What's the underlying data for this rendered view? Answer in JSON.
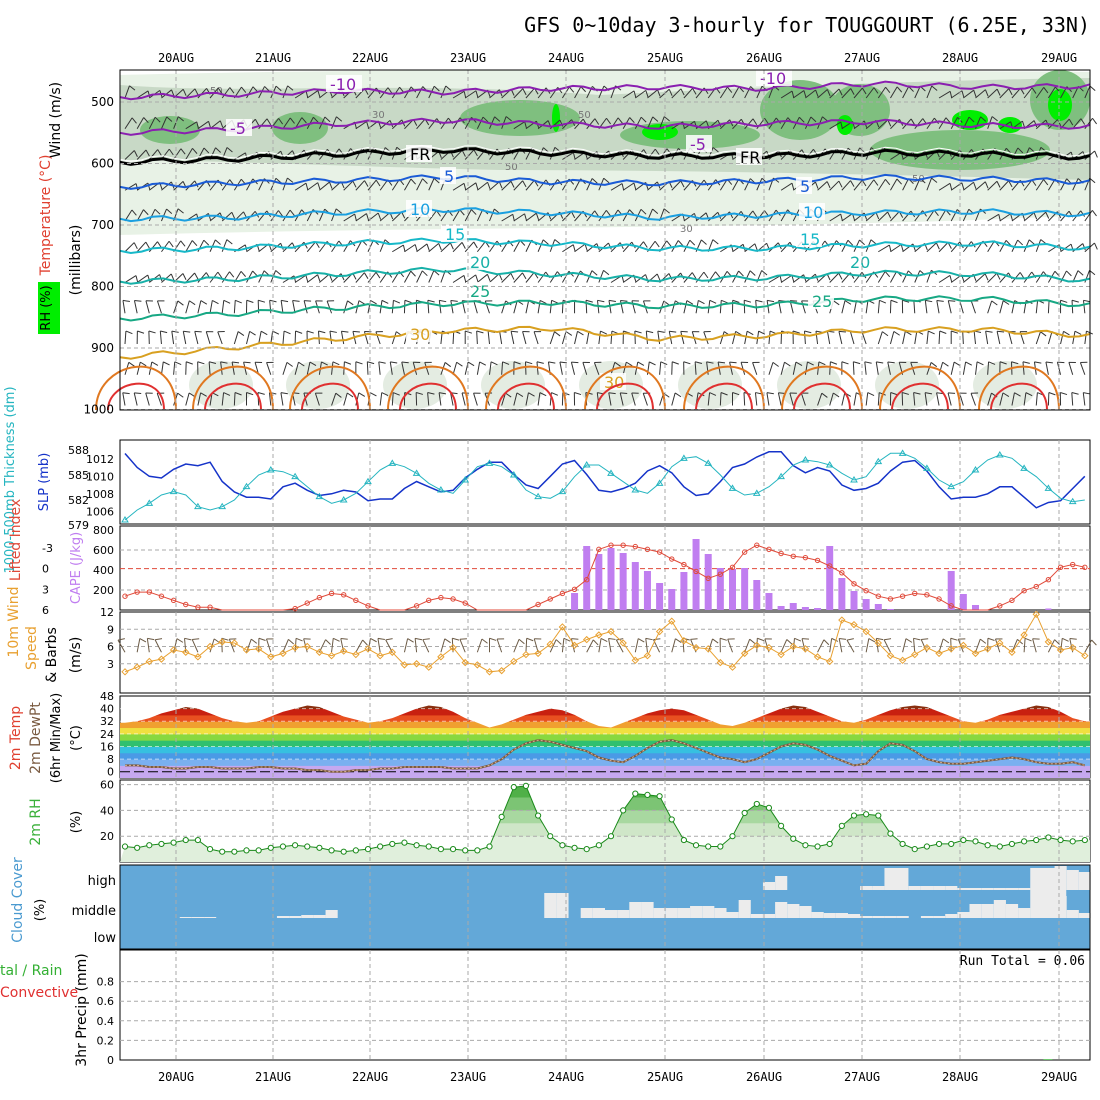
{
  "page": {
    "title": "GFS 0~10day 3-hourly for TOUGGOURT (6.25E, 33N)",
    "dates": [
      "20AUG",
      "21AUG",
      "22AUG",
      "23AUG",
      "24AUG",
      "25AUG",
      "26AUG",
      "27AUG",
      "28AUG",
      "29AUG"
    ],
    "run_total": "Run Total = 0.06"
  },
  "colors": {
    "rh_light": "#e8f2e6",
    "rh_mid": "#c4d6c2",
    "rh_dark": "#7fbf7f",
    "rh_green": "#33cc33",
    "rh_bright": "#00ee00",
    "slp": "#1533c9",
    "thick": "#25b5c0",
    "lifted": "#e04a3a",
    "cape": "#c07ef0",
    "wind_speed": "#e8a030",
    "barb": "#6b5a45",
    "rh2m": "#3ab03a",
    "cloud_bg": "#63a8d8",
    "cloud_fill": "#ececec",
    "precip_total": "#33b033",
    "precip_conv": "#e03030"
  },
  "chart_data": [
    {
      "type": "contour",
      "name": "upper-air-cross-section",
      "ylabel_wind": "Wind (m/s)",
      "ylabel_temp": "Temperature (°C)",
      "ylabel_rh": "RH (%)",
      "ylabel_mb": "(millibars)",
      "yticks": [
        500,
        600,
        700,
        800,
        900,
        1000
      ],
      "ylim": [
        450,
        1000
      ],
      "rh_labels": [
        "50",
        "30",
        "50",
        "50",
        "30",
        "50"
      ],
      "isotherm_levels": [
        -10,
        -5,
        0,
        5,
        10,
        15,
        20,
        25,
        30
      ],
      "isotherm_labels": [
        "-10",
        "-5",
        "FR",
        "5",
        "10",
        "15",
        "20",
        "25",
        "30"
      ],
      "isotherms_mb": [
        {
          "t": -10,
          "mb": [
            492,
            488,
            482,
            484,
            478,
            476,
            478,
            470,
            476,
            474
          ]
        },
        {
          "t": -5,
          "mb": [
            550,
            545,
            536,
            530,
            536,
            540,
            535,
            532,
            538,
            540
          ]
        },
        {
          "t": 0,
          "mb": [
            598,
            593,
            585,
            578,
            583,
            588,
            588,
            582,
            585,
            590
          ]
        },
        {
          "t": 5,
          "mb": [
            638,
            632,
            628,
            622,
            630,
            632,
            628,
            622,
            625,
            630
          ]
        },
        {
          "t": 10,
          "mb": [
            690,
            688,
            680,
            675,
            680,
            688,
            684,
            680,
            678,
            683
          ]
        },
        {
          "t": 15,
          "mb": [
            742,
            738,
            730,
            725,
            730,
            738,
            738,
            732,
            730,
            738
          ]
        },
        {
          "t": 20,
          "mb": [
            792,
            788,
            780,
            772,
            780,
            788,
            786,
            778,
            780,
            790
          ]
        },
        {
          "t": 25,
          "mb": [
            852,
            845,
            835,
            828,
            826,
            832,
            830,
            820,
            820,
            830
          ]
        },
        {
          "t": 30,
          "mb": [
            915,
            900,
            885,
            872,
            868,
            885,
            880,
            870,
            870,
            880
          ]
        }
      ]
    },
    {
      "type": "line",
      "name": "slp-thickness",
      "ylabel_slp": "SLP (mb)",
      "ylabel_thick": "1000-500mb Thickness (dm)",
      "yticks_left": [
        588,
        585,
        582,
        579
      ],
      "yticks_right": [
        1012,
        1010,
        1008,
        1006
      ],
      "x": [
        0,
        1,
        2,
        3,
        4,
        5,
        6,
        7,
        8,
        9,
        10,
        11,
        12,
        13,
        14,
        15,
        16,
        17,
        18,
        19,
        20,
        21,
        22,
        23,
        24,
        25,
        26,
        27,
        28,
        29,
        30,
        31,
        32,
        33,
        34,
        35,
        36,
        37,
        38,
        39,
        40,
        41,
        42,
        43,
        44,
        45,
        46,
        47,
        48,
        49,
        50,
        51,
        52,
        53,
        54,
        55,
        56,
        57,
        58,
        59,
        60,
        61,
        62,
        63,
        64,
        65,
        66,
        67,
        68,
        69,
        70,
        71,
        72,
        73,
        74,
        75,
        76,
        77,
        78,
        79
      ],
      "slp": [
        1012.6,
        1011.0,
        1010.0,
        1009.8,
        1010.8,
        1011.4,
        1011.2,
        1011.6,
        1009.4,
        1008.2,
        1007.6,
        1007.6,
        1007.4,
        1008.8,
        1009.2,
        1008.4,
        1007.8,
        1008.0,
        1008.4,
        1008.2,
        1007.2,
        1007.4,
        1007.4,
        1008.6,
        1009.4,
        1008.8,
        1008.2,
        1008.4,
        1009.8,
        1010.8,
        1011.6,
        1011.6,
        1010.2,
        1009.0,
        1008.6,
        1010.0,
        1011.4,
        1011.8,
        1010.2,
        1008.4,
        1008.2,
        1008.6,
        1009.2,
        1010.6,
        1011.2,
        1010.4,
        1008.8,
        1007.8,
        1008.0,
        1009.4,
        1011.0,
        1011.4,
        1012.2,
        1012.8,
        1012.8,
        1011.2,
        1010.4,
        1011.0,
        1010.6,
        1009.0,
        1008.4,
        1008.6,
        1009.2,
        1010.6,
        1011.6,
        1011.8,
        1010.6,
        1008.8,
        1007.4,
        1007.6,
        1007.6,
        1008.0,
        1008.8,
        1008.8,
        1007.6,
        1006.4,
        1007.0,
        1007.2,
        1008.6,
        1010.0
      ],
      "thickness": [
        579.6,
        580.8,
        581.6,
        582.6,
        583.0,
        582.6,
        581.2,
        580.8,
        581.2,
        582.0,
        583.6,
        585.0,
        585.6,
        585.4,
        584.8,
        583.6,
        582.4,
        581.6,
        582.0,
        582.8,
        584.2,
        585.6,
        586.4,
        586.0,
        585.2,
        584.0,
        583.2,
        582.8,
        584.4,
        586.0,
        586.4,
        586.0,
        585.0,
        583.2,
        582.4,
        582.2,
        583.0,
        584.8,
        586.2,
        586.2,
        585.2,
        584.2,
        583.2,
        582.8,
        584.0,
        586.0,
        587.0,
        587.2,
        586.4,
        585.0,
        583.4,
        582.6,
        582.8,
        583.6,
        584.8,
        586.2,
        586.8,
        586.6,
        586.2,
        585.2,
        584.4,
        584.8,
        586.6,
        587.6,
        587.6,
        587.0,
        585.8,
        584.4,
        583.6,
        584.2,
        585.6,
        586.8,
        587.4,
        587.0,
        585.8,
        584.8,
        583.4,
        582.2,
        581.8,
        582.0
      ]
    },
    {
      "type": "bar",
      "name": "lifted-index-cape",
      "ylabel_li": "Lifted Index",
      "ylabel_cape": "CAPE (J/kg)",
      "yticks_left": [
        "-3",
        "0",
        "3",
        "6"
      ],
      "yticks_right": [
        "800",
        "600",
        "400",
        "200"
      ],
      "cape_x": [
        37,
        38,
        39,
        40,
        41,
        42,
        43,
        44,
        45,
        46,
        47,
        48,
        49,
        50,
        51,
        52,
        53,
        54,
        55,
        56,
        57,
        58,
        59,
        60,
        61,
        62,
        63,
        64,
        65,
        66,
        67,
        68,
        69,
        70,
        71,
        72,
        73,
        74,
        75,
        76,
        77
      ],
      "cape": [
        170,
        640,
        560,
        620,
        570,
        480,
        390,
        270,
        210,
        380,
        710,
        560,
        420,
        410,
        420,
        300,
        170,
        40,
        70,
        30,
        20,
        640,
        320,
        190,
        110,
        60,
        10,
        0,
        0,
        0,
        0,
        390,
        160,
        50,
        0,
        0,
        0,
        0,
        0,
        0,
        0
      ],
      "lifted_index": [
        4.0,
        3.4,
        3.4,
        4.0,
        4.6,
        5.2,
        5.6,
        5.6,
        6.0,
        6.6,
        7.0,
        7.0,
        6.8,
        6.4,
        5.8,
        5.0,
        4.2,
        3.6,
        3.8,
        4.6,
        5.4,
        6.0,
        6.4,
        6.4,
        5.4,
        4.6,
        4.2,
        4.4,
        5.0,
        6.0,
        6.8,
        7.2,
        6.8,
        6.0,
        5.2,
        4.4,
        3.6,
        3.0,
        1.6,
        -2.8,
        -3.4,
        -3.4,
        -3.2,
        -2.8,
        -2.4,
        -1.4,
        -0.6,
        0.4,
        1.4,
        0.8,
        -0.2,
        -2.4,
        -3.4,
        -2.8,
        -2.2,
        -1.8,
        -1.6,
        -1.2,
        -0.4,
        0.6,
        2.2,
        3.2,
        4.0,
        4.4,
        4.0,
        3.6,
        3.8,
        4.4,
        5.4,
        6.0,
        6.4,
        6.0,
        5.4,
        4.6,
        3.2,
        2.6,
        1.6,
        -0.2,
        -0.6,
        -0.2
      ]
    },
    {
      "type": "line",
      "name": "10m-wind",
      "ylabel": "10m Wind Speed & Barbs (m/s)",
      "yticks": [
        12,
        9,
        6,
        3
      ],
      "ylim": [
        0,
        12
      ],
      "speed": [
        1.6,
        2.4,
        3.4,
        3.8,
        5.4,
        5.0,
        4.2,
        6.0,
        6.8,
        6.6,
        5.4,
        5.6,
        4.2,
        4.8,
        5.8,
        6.0,
        5.0,
        4.4,
        5.2,
        4.6,
        5.6,
        4.4,
        5.0,
        2.8,
        3.0,
        2.4,
        4.2,
        5.8,
        3.2,
        2.8,
        1.6,
        1.8,
        3.4,
        4.6,
        4.8,
        6.4,
        9.4,
        6.2,
        7.2,
        8.0,
        8.6,
        6.6,
        3.6,
        4.4,
        8.6,
        10.4,
        7.0,
        5.8,
        5.6,
        3.2,
        2.4,
        4.8,
        6.2,
        5.8,
        4.6,
        6.0,
        5.6,
        4.2,
        3.4,
        10.6,
        9.8,
        8.6,
        6.6,
        4.4,
        3.6,
        4.6,
        5.8,
        4.8,
        5.6,
        6.2,
        4.8,
        5.6,
        6.6,
        5.0,
        8.0,
        11.6,
        6.8,
        5.4,
        5.8,
        4.4
      ]
    },
    {
      "type": "area",
      "name": "2m-temp-dewpoint",
      "ylabel": "2m Temp 2m DewPt (6hr Min/Max) (°C)",
      "yticks": [
        48,
        40,
        32,
        24,
        16,
        8,
        0
      ],
      "ylim": [
        -4,
        48
      ],
      "temp": [
        31,
        32,
        34,
        37,
        39,
        41,
        40,
        37,
        34,
        32,
        31,
        32,
        35,
        38,
        40,
        42,
        41,
        38,
        35,
        33,
        31,
        32,
        34,
        37,
        40,
        42,
        41,
        38,
        34,
        31,
        28,
        30,
        33,
        36,
        38,
        40,
        39,
        36,
        32,
        29,
        28,
        31,
        34,
        37,
        39,
        40,
        39,
        36,
        33,
        30,
        29,
        31,
        34,
        37,
        40,
        42,
        41,
        38,
        35,
        32,
        31,
        33,
        36,
        39,
        41,
        42,
        41,
        38,
        35,
        32,
        31,
        33,
        36,
        38,
        40,
        42,
        41,
        38,
        34,
        32
      ],
      "dewpt": [
        4,
        4,
        3,
        3,
        2,
        2,
        3,
        3,
        2,
        2,
        2,
        3,
        3,
        2,
        2,
        1,
        1,
        0,
        0,
        1,
        1,
        2,
        2,
        3,
        3,
        3,
        3,
        2,
        2,
        2,
        4,
        8,
        14,
        18,
        20,
        19,
        17,
        15,
        13,
        9,
        7,
        6,
        10,
        15,
        19,
        20,
        18,
        15,
        12,
        9,
        8,
        6,
        8,
        12,
        16,
        18,
        17,
        14,
        10,
        7,
        4,
        5,
        13,
        18,
        17,
        13,
        8,
        6,
        5,
        5,
        6,
        7,
        8,
        9,
        8,
        6,
        5,
        5,
        6,
        4
      ]
    },
    {
      "type": "area",
      "name": "2m-rh",
      "ylabel": "2m RH (%)",
      "yticks": [
        60,
        40,
        20
      ],
      "ylim": [
        0,
        62
      ],
      "rh": [
        12,
        11,
        13,
        14,
        15,
        17,
        17,
        10,
        8,
        8,
        9,
        9,
        11,
        12,
        13,
        12,
        11,
        9,
        8,
        9,
        10,
        12,
        14,
        15,
        13,
        12,
        10,
        10,
        9,
        9,
        12,
        35,
        58,
        59,
        36,
        20,
        13,
        11,
        10,
        13,
        20,
        40,
        53,
        52,
        51,
        33,
        17,
        13,
        12,
        12,
        20,
        38,
        45,
        42,
        28,
        18,
        13,
        12,
        14,
        28,
        36,
        37,
        36,
        22,
        14,
        10,
        12,
        14,
        14,
        17,
        16,
        13,
        12,
        14,
        16,
        17,
        19,
        17,
        16,
        17
      ]
    },
    {
      "type": "bar",
      "name": "cloud-cover",
      "ylabel": "Cloud Cover (%)",
      "yticks": [
        "high",
        "middle",
        "low"
      ],
      "middle": [
        0,
        0,
        0,
        0,
        0,
        0,
        0,
        0,
        0,
        0,
        0,
        0,
        0,
        0,
        0,
        0,
        0,
        0,
        0,
        0,
        0,
        0,
        0,
        0,
        0,
        0,
        0,
        0,
        0,
        0,
        0,
        0,
        0,
        0,
        0,
        0,
        0,
        0,
        0,
        0,
        0,
        0,
        0,
        0,
        0,
        0,
        0,
        0,
        0,
        0,
        0,
        0,
        0,
        0,
        0,
        0,
        0,
        0,
        0,
        0,
        0,
        0,
        0,
        0,
        0,
        0,
        0,
        0,
        0,
        0,
        0,
        0,
        0,
        0,
        0,
        0,
        0,
        0,
        0,
        0
      ],
      "mid_pct": [
        0,
        0,
        0,
        0,
        0,
        0,
        0,
        0,
        0,
        0,
        0,
        0,
        0,
        0,
        0,
        0,
        0,
        0,
        0,
        0,
        0,
        0,
        0,
        0,
        0,
        0,
        0,
        0,
        0,
        0,
        0,
        0,
        0,
        0,
        0,
        0,
        0,
        0,
        0,
        0,
        0,
        0,
        0,
        0,
        0,
        0,
        0,
        0,
        0,
        0,
        0,
        0,
        0,
        0,
        0,
        0,
        0,
        0,
        0,
        0,
        0,
        0,
        0,
        0,
        0,
        0,
        0,
        0,
        0,
        0,
        0,
        0,
        0,
        0,
        0,
        0,
        0,
        0,
        0,
        0
      ]
    },
    {
      "type": "bar",
      "name": "3hr-precip",
      "ylabel": "3hr Precip (mm)",
      "ylabel2": "tal / Rain",
      "ylabel3": "Convective",
      "yticks": [
        "0.8",
        "0.6",
        "0.4",
        "0.2",
        "0"
      ],
      "ylim": [
        0,
        1.0
      ],
      "total_x": [
        76
      ],
      "total": [
        0.06
      ]
    }
  ]
}
